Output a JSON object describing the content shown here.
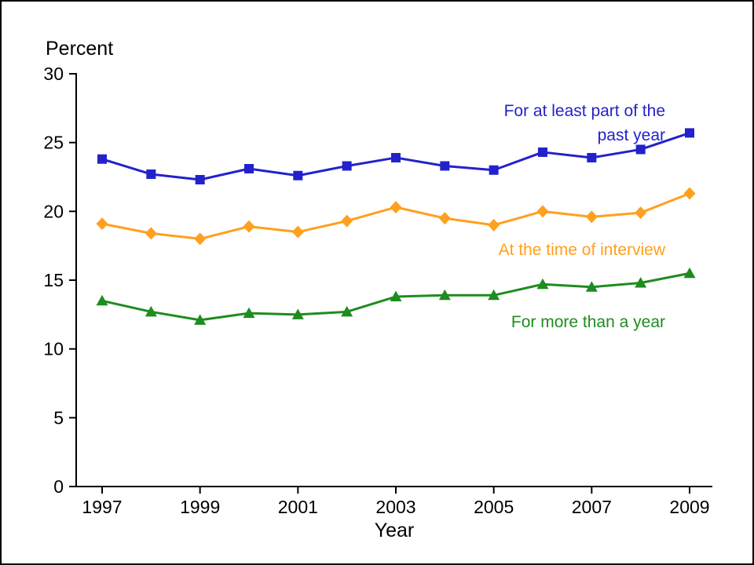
{
  "chart_data": {
    "type": "line",
    "title": "",
    "xlabel": "Year",
    "ylabel": "Percent",
    "ylim": [
      0,
      30
    ],
    "yticks": [
      0,
      5,
      10,
      15,
      20,
      25,
      30
    ],
    "x": [
      1997,
      1998,
      1999,
      2000,
      2001,
      2002,
      2003,
      2004,
      2005,
      2006,
      2007,
      2008,
      2009
    ],
    "xtick_labels": [
      1997,
      1999,
      2001,
      2003,
      2005,
      2007,
      2009
    ],
    "grid": false,
    "legend_position": "inline-annotations",
    "series": [
      {
        "name": "For at least part of the\npast year",
        "color": "#2222cc",
        "marker": "square",
        "values": [
          23.8,
          22.7,
          22.3,
          23.1,
          22.6,
          23.3,
          23.9,
          23.3,
          23.0,
          24.3,
          23.9,
          24.5,
          25.7
        ]
      },
      {
        "name": "At the time of interview",
        "color": "#ffa01e",
        "marker": "diamond",
        "values": [
          19.1,
          18.4,
          18.0,
          18.9,
          18.5,
          19.3,
          20.3,
          19.5,
          19.0,
          20.0,
          19.6,
          19.9,
          21.3
        ]
      },
      {
        "name": "For more than a year",
        "color": "#1e8c1e",
        "marker": "triangle",
        "values": [
          13.5,
          12.7,
          12.1,
          12.6,
          12.5,
          12.7,
          13.8,
          13.9,
          13.9,
          14.7,
          14.5,
          14.8,
          15.5
        ]
      }
    ]
  }
}
